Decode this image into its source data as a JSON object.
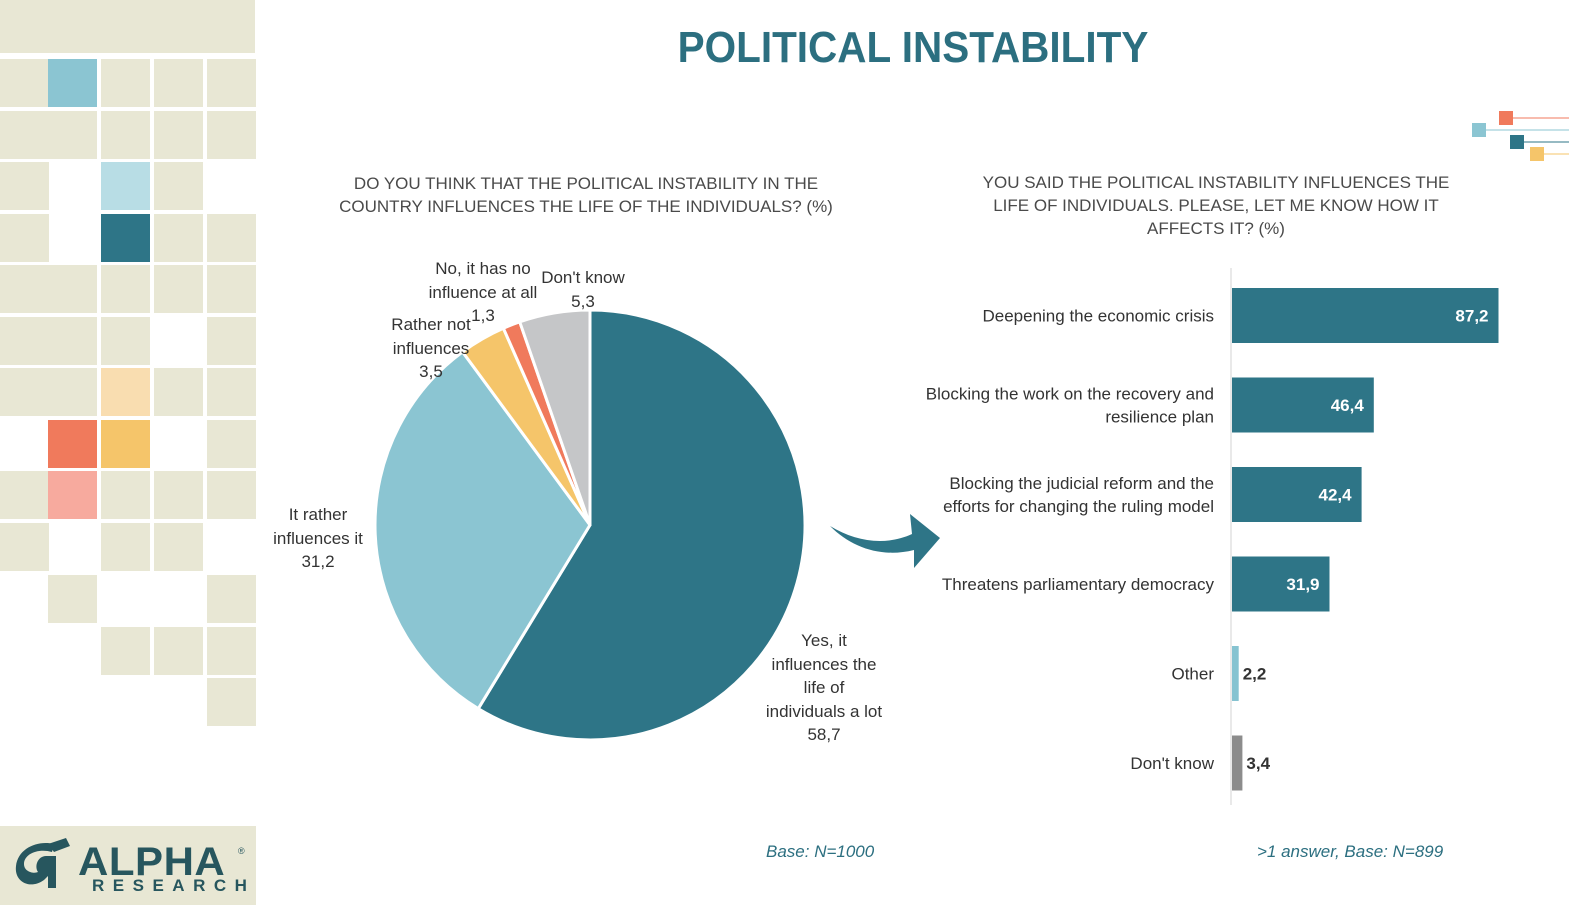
{
  "title": "POLITICAL INSTABILITY",
  "logo": {
    "word": "ALPHA",
    "sub": "RESEARCH",
    "reg": "®"
  },
  "colors": {
    "teal_dark": "#2e7587",
    "teal_light": "#8bc5d2",
    "yellow": "#f5c56a",
    "orange": "#f07a5c",
    "grey": "#c5c6c8",
    "bar_other": "#86c3d1",
    "bar_dontknow": "#8c8c8c",
    "title": "#2c6f80"
  },
  "left_question": [
    "DO YOU THINK THAT THE POLITICAL INSTABILITY IN THE",
    "COUNTRY INFLUENCES THE LIFE OF THE INDIVIDUALS? (%)"
  ],
  "right_question": [
    "YOU SAID THE POLITICAL INSTABILITY INFLUENCES THE",
    "LIFE OF INDIVIDUALS. PLEASE, LET ME KNOW HOW IT",
    "AFFECTS IT? (%)"
  ],
  "base_left": "Base: N=1000",
  "base_right": ">1 answer, Base: N=899",
  "chart_data": [
    {
      "type": "pie",
      "title": "DO YOU THINK THAT THE POLITICAL INSTABILITY IN THE COUNTRY INFLUENCES THE LIFE OF THE INDIVIDUALS? (%)",
      "slices": [
        {
          "key": "yes",
          "lines": [
            "Yes, it",
            "influences the",
            "life of",
            "individuals a lot"
          ],
          "value": 58.7,
          "display": "58,7",
          "color": "#2e7587"
        },
        {
          "key": "rather",
          "lines": [
            "It rather",
            "influences it"
          ],
          "value": 31.2,
          "display": "31,2",
          "color": "#8bc5d2"
        },
        {
          "key": "rathernot",
          "lines": [
            "Rather not",
            "influences"
          ],
          "value": 3.5,
          "display": "3,5",
          "color": "#f5c56a"
        },
        {
          "key": "no",
          "lines": [
            "No, it has no",
            "influence at all"
          ],
          "value": 1.3,
          "display": "1,3",
          "color": "#f07a5c"
        },
        {
          "key": "dontknow",
          "lines": [
            "Don't know"
          ],
          "value": 5.3,
          "display": "5,3",
          "color": "#c5c6c8"
        }
      ],
      "footnote": "Base: N=1000"
    },
    {
      "type": "bar",
      "orientation": "horizontal",
      "title": "YOU SAID THE POLITICAL INSTABILITY INFLUENCES THE LIFE OF INDIVIDUALS. PLEASE, LET ME KNOW HOW IT AFFECTS IT? (%)",
      "categories": [
        [
          "Deepening the economic crisis"
        ],
        [
          "Blocking the work on the recovery and",
          "resilience plan"
        ],
        [
          "Blocking the judicial reform and the",
          "efforts for changing the ruling model"
        ],
        [
          "Threatens parliamentary democracy"
        ],
        [
          "Other"
        ],
        [
          "Don't know"
        ]
      ],
      "values": [
        87.2,
        46.4,
        42.4,
        31.9,
        2.2,
        3.4
      ],
      "labels": [
        "87,2",
        "46,4",
        "42,4",
        "31,9",
        "2,2",
        "3,4"
      ],
      "colors": [
        "#2e7587",
        "#2e7587",
        "#2e7587",
        "#2e7587",
        "#86c3d1",
        "#8c8c8c"
      ],
      "label_inside": [
        true,
        true,
        true,
        true,
        false,
        false
      ],
      "xlim": [
        0,
        100
      ],
      "footnote": ">1 answer, Base: N=899"
    }
  ]
}
